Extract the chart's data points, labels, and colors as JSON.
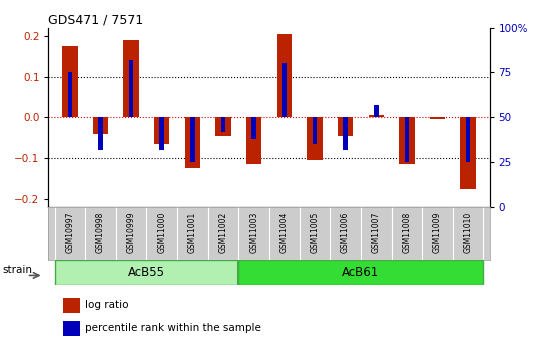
{
  "title": "GDS471 / 7571",
  "samples": [
    "GSM10997",
    "GSM10998",
    "GSM10999",
    "GSM11000",
    "GSM11001",
    "GSM11002",
    "GSM11003",
    "GSM11004",
    "GSM11005",
    "GSM11006",
    "GSM11007",
    "GSM11008",
    "GSM11009",
    "GSM11010"
  ],
  "log_ratio": [
    0.175,
    -0.04,
    0.19,
    -0.065,
    -0.125,
    -0.045,
    -0.115,
    0.205,
    -0.105,
    -0.045,
    0.005,
    -0.115,
    -0.005,
    -0.175
  ],
  "percentile_raw": [
    75,
    32,
    82,
    32,
    25,
    42,
    38,
    80,
    35,
    32,
    57,
    25,
    50,
    25
  ],
  "groups": [
    {
      "label": "AcB55",
      "start": 0,
      "end": 5,
      "color": "#b2f0b2",
      "edge_color": "#44aa44"
    },
    {
      "label": "AcB61",
      "start": 6,
      "end": 13,
      "color": "#33dd33",
      "edge_color": "#44aa44"
    }
  ],
  "group_divider": 5.5,
  "group_label": "strain",
  "ylim_left": [
    -0.22,
    0.22
  ],
  "ylim_right": [
    0,
    100
  ],
  "yticks_left": [
    -0.2,
    -0.1,
    0.0,
    0.1,
    0.2
  ],
  "yticks_right": [
    0,
    25,
    50,
    75,
    100
  ],
  "ytick_labels_right": [
    "0",
    "25",
    "50",
    "75",
    "100%"
  ],
  "hlines_dotted": [
    0.1,
    -0.1
  ],
  "zero_line_color": "#cc0000",
  "red_bar_width": 0.5,
  "blue_bar_width": 0.15,
  "red_color": "#bb2200",
  "blue_color": "#0000bb",
  "sample_box_color": "#cccccc",
  "legend_items": [
    "log ratio",
    "percentile rank within the sample"
  ]
}
